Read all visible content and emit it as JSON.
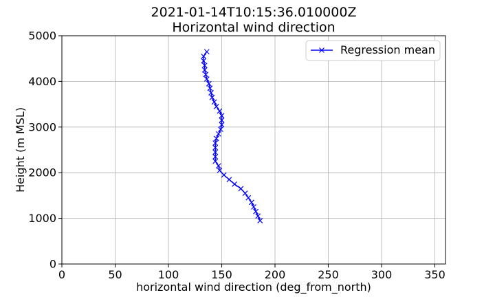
{
  "chart_data": {
    "type": "line",
    "title": "2021-01-14T10:15:36.010000Z",
    "subtitle": "Horizontal wind direction",
    "xlabel": "horizontal wind direction (deg_from_north)",
    "ylabel": "Height (m MSL)",
    "xlim": [
      0,
      360
    ],
    "ylim": [
      0,
      5000
    ],
    "xticks": [
      0,
      50,
      100,
      150,
      200,
      250,
      300,
      350
    ],
    "yticks": [
      0,
      1000,
      2000,
      3000,
      4000,
      5000
    ],
    "grid": true,
    "legend_position": "top-right",
    "series": [
      {
        "name": "Regression mean",
        "color": "#0000ff",
        "marker": "x",
        "points": [
          [
            186,
            950
          ],
          [
            184,
            1050
          ],
          [
            182,
            1150
          ],
          [
            180,
            1250
          ],
          [
            178,
            1350
          ],
          [
            175,
            1450
          ],
          [
            172,
            1550
          ],
          [
            168,
            1650
          ],
          [
            162,
            1750
          ],
          [
            157,
            1850
          ],
          [
            152,
            1950
          ],
          [
            148,
            2050
          ],
          [
            147,
            2150
          ],
          [
            144,
            2250
          ],
          [
            144,
            2350
          ],
          [
            144,
            2450
          ],
          [
            144,
            2550
          ],
          [
            144,
            2650
          ],
          [
            145,
            2750
          ],
          [
            147,
            2850
          ],
          [
            149,
            2950
          ],
          [
            150,
            3050
          ],
          [
            150,
            3150
          ],
          [
            150,
            3250
          ],
          [
            148,
            3350
          ],
          [
            145,
            3450
          ],
          [
            143,
            3550
          ],
          [
            141,
            3650
          ],
          [
            140,
            3750
          ],
          [
            139,
            3850
          ],
          [
            138,
            3950
          ],
          [
            136,
            4050
          ],
          [
            135,
            4150
          ],
          [
            134,
            4250
          ],
          [
            134,
            4350
          ],
          [
            133,
            4450
          ],
          [
            133,
            4550
          ],
          [
            136,
            4650
          ]
        ]
      }
    ]
  }
}
